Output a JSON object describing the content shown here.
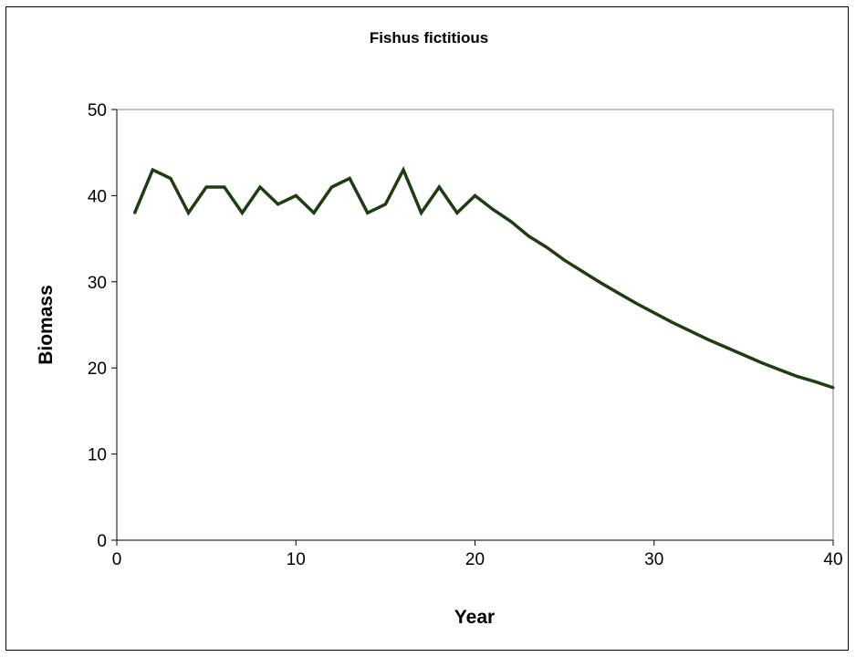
{
  "chart_data": {
    "type": "line",
    "title": "Fishus fictitious",
    "xlabel": "Year",
    "ylabel": "Biomass",
    "xlim": [
      0,
      40
    ],
    "ylim": [
      0,
      50
    ],
    "xticks": [
      "0",
      "10",
      "20",
      "30",
      "40"
    ],
    "yticks": [
      "0",
      "10",
      "20",
      "30",
      "40",
      "50"
    ],
    "grid": false,
    "legend": "none",
    "line_color": "#1e3d12",
    "x": [
      1,
      2,
      3,
      4,
      5,
      6,
      7,
      8,
      9,
      10,
      11,
      12,
      13,
      14,
      15,
      16,
      17,
      18,
      19,
      20,
      21,
      22,
      23,
      24,
      25,
      26,
      27,
      28,
      29,
      30,
      31,
      32,
      33,
      34,
      35,
      36,
      37,
      38,
      39,
      40
    ],
    "series": [
      {
        "values": [
          38,
          43,
          42,
          38,
          41,
          41,
          38,
          41,
          39,
          40,
          38,
          41,
          42,
          38,
          39,
          43,
          38,
          41,
          38,
          40,
          38.4,
          37.0,
          35.3,
          34.0,
          32.5,
          31.2,
          29.9,
          28.7,
          27.5,
          26.4,
          25.3,
          24.3,
          23.3,
          22.4,
          21.5,
          20.6,
          19.8,
          19.0,
          18.4,
          17.7
        ]
      }
    ]
  }
}
